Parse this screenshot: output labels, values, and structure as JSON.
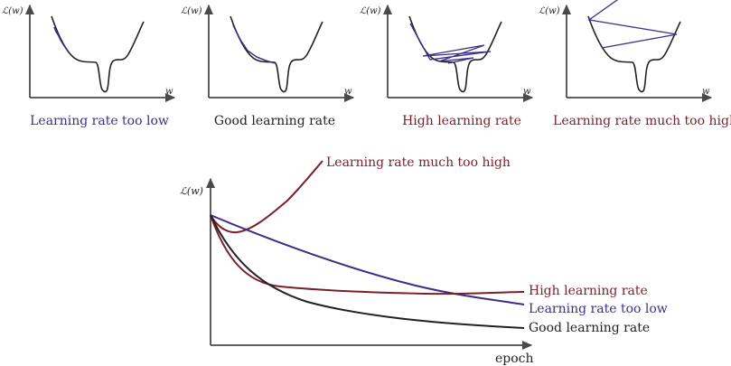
{
  "colors": {
    "axis": "#4a4a4a",
    "curve": "#222222",
    "low": "#3b2f86",
    "high": "#7a1f2b",
    "good": "#222222"
  },
  "panels": [
    {
      "y_label": "ℒ(w)",
      "x_label": "w",
      "caption": "Learning rate too low"
    },
    {
      "y_label": "ℒ(w)",
      "x_label": "w",
      "caption": "Good learning rate"
    },
    {
      "y_label": "ℒ(w)",
      "x_label": "w",
      "caption": "High learning rate"
    },
    {
      "y_label": "ℒ(w)",
      "x_label": "w",
      "caption": "Learning rate much too high"
    }
  ],
  "bottom_chart": {
    "y_label": "ℒ(w)",
    "x_label": "epoch",
    "series_labels": {
      "much_too_high": "Learning rate much too high",
      "high": "High learning rate",
      "too_low": "Learning rate too low",
      "good": "Good learning rate"
    }
  }
}
